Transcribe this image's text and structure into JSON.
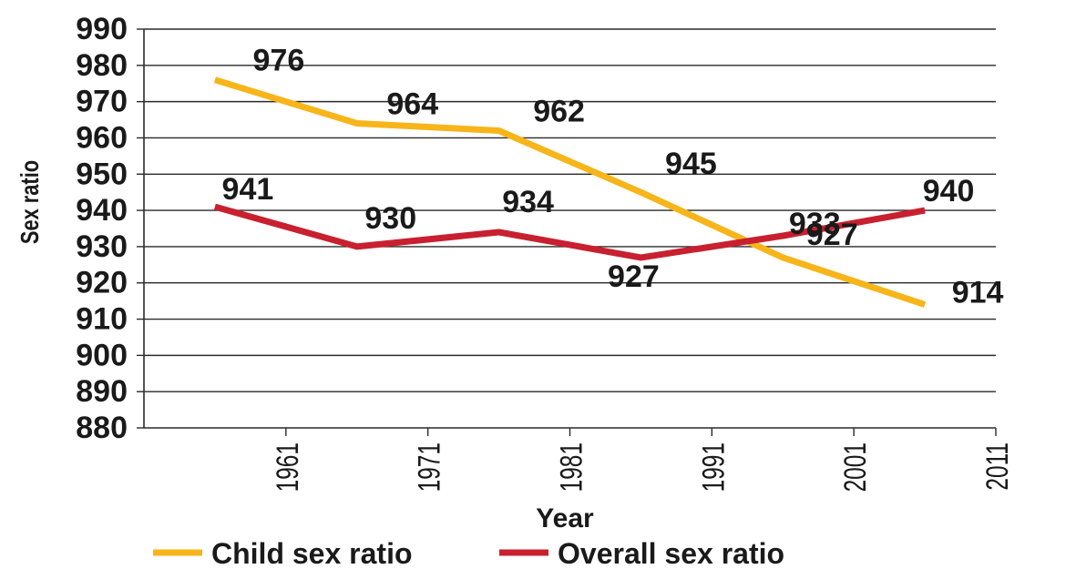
{
  "chart_data": {
    "type": "line",
    "title": "",
    "xlabel": "Year",
    "ylabel": "Sex ratio",
    "ylim": [
      880,
      990
    ],
    "yticks": [
      "990",
      "980",
      "970",
      "960",
      "950",
      "940",
      "930",
      "920",
      "910",
      "900",
      "890",
      "880"
    ],
    "xticks": [
      "1961",
      "1971",
      "1981",
      "1991",
      "2001",
      "2011"
    ],
    "x": [
      1956,
      1966,
      1976,
      1986,
      1996,
      2006
    ],
    "grid": true,
    "legend_position": "bottom",
    "series": [
      {
        "name": "Child sex ratio",
        "color": "#f7b51a",
        "values": [
          976,
          964,
          962,
          945,
          927,
          914
        ],
        "labels": [
          "976",
          "964",
          "962",
          "945",
          "927",
          "914"
        ]
      },
      {
        "name": "Overall sex ratio",
        "color": "#c8202f",
        "values": [
          941,
          930,
          934,
          927,
          933,
          940
        ],
        "labels": [
          "941",
          "930",
          "934",
          "927",
          "933",
          "940"
        ]
      }
    ]
  }
}
